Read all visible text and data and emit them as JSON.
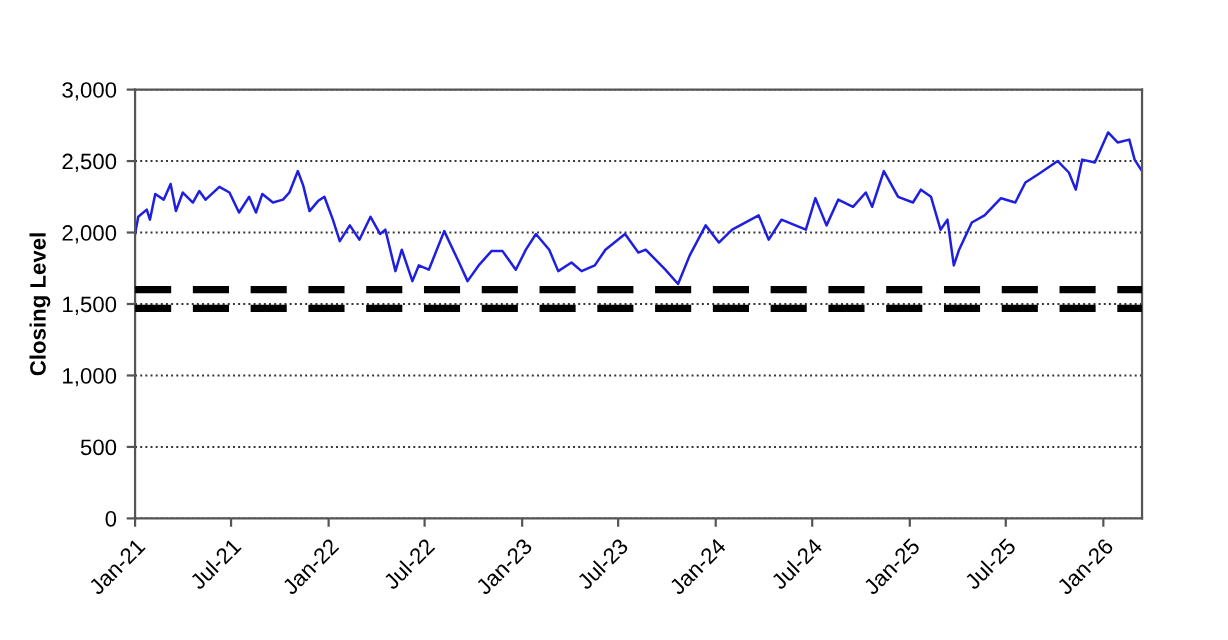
{
  "chart_data": {
    "type": "line",
    "ylabel": "Closing Level",
    "x": [
      "2021-01-01",
      "2021-01-07",
      "2021-01-23",
      "2021-01-29",
      "2021-02-08",
      "2021-02-24",
      "2021-03-09",
      "2021-03-19",
      "2021-04-01",
      "2021-04-20",
      "2021-05-02",
      "2021-05-14",
      "2021-06-09",
      "2021-06-28",
      "2021-07-16",
      "2021-08-04",
      "2021-08-17",
      "2021-08-29",
      "2021-09-18",
      "2021-10-07",
      "2021-10-19",
      "2021-11-04",
      "2021-11-14",
      "2021-11-26",
      "2021-12-12",
      "2021-12-24",
      "2022-01-09",
      "2022-01-22",
      "2022-02-10",
      "2022-02-28",
      "2022-03-21",
      "2022-04-08",
      "2022-04-18",
      "2022-05-07",
      "2022-05-19",
      "2022-06-08",
      "2022-06-20",
      "2022-07-09",
      "2022-08-07",
      "2022-09-04",
      "2022-09-20",
      "2022-10-11",
      "2022-11-04",
      "2022-11-25",
      "2022-12-20",
      "2023-01-08",
      "2023-01-27",
      "2023-02-21",
      "2023-03-10",
      "2023-04-04",
      "2023-04-23",
      "2023-05-18",
      "2023-06-07",
      "2023-07-14",
      "2023-08-08",
      "2023-08-22",
      "2023-09-28",
      "2023-10-22",
      "2023-11-13",
      "2023-12-13",
      "2024-01-07",
      "2024-02-01",
      "2024-03-22",
      "2024-04-10",
      "2024-05-04",
      "2024-06-19",
      "2024-07-07",
      "2024-07-28",
      "2024-08-19",
      "2024-09-16",
      "2024-10-10",
      "2024-10-22",
      "2024-11-13",
      "2024-12-10",
      "2025-01-07",
      "2025-01-22",
      "2025-02-10",
      "2025-02-28",
      "2025-03-13",
      "2025-03-25",
      "2025-04-04",
      "2025-04-28",
      "2025-05-22",
      "2025-06-22",
      "2025-07-19",
      "2025-08-07",
      "2025-09-01",
      "2025-10-07",
      "2025-10-28",
      "2025-11-10",
      "2025-11-22",
      "2025-12-16",
      "2026-01-10",
      "2026-01-28",
      "2026-02-19",
      "2026-03-01",
      "2026-03-13"
    ],
    "series": [
      {
        "color": "#1f1fe0",
        "values": [
          1990,
          2110,
          2160,
          2090,
          2270,
          2230,
          2340,
          2150,
          2280,
          2210,
          2290,
          2230,
          2320,
          2280,
          2140,
          2250,
          2140,
          2270,
          2210,
          2230,
          2280,
          2430,
          2330,
          2150,
          2220,
          2250,
          2090,
          1940,
          2050,
          1950,
          2110,
          1990,
          2020,
          1730,
          1880,
          1660,
          1770,
          1740,
          2010,
          1790,
          1660,
          1770,
          1870,
          1870,
          1740,
          1880,
          1990,
          1880,
          1730,
          1790,
          1730,
          1770,
          1880,
          1990,
          1860,
          1880,
          1740,
          1640,
          1840,
          2050,
          1930,
          2020,
          2120,
          1950,
          2090,
          2020,
          2240,
          2050,
          2230,
          2180,
          2280,
          2180,
          2430,
          2250,
          2210,
          2300,
          2250,
          2020,
          2090,
          1770,
          1880,
          2070,
          2120,
          2240,
          2210,
          2350,
          2410,
          2500,
          2420,
          2300,
          2510,
          2490,
          2700,
          2630,
          2650,
          2510,
          2440
        ]
      }
    ],
    "xlim": [
      "2021-01-01",
      "2026-03-15"
    ],
    "xticks": [
      {
        "value": "2021-01",
        "label": "Jan-21"
      },
      {
        "value": "2021-07",
        "label": "Jul-21"
      },
      {
        "value": "2022-01",
        "label": "Jan-22"
      },
      {
        "value": "2022-07",
        "label": "Jul-22"
      },
      {
        "value": "2023-01",
        "label": "Jan-23"
      },
      {
        "value": "2023-07",
        "label": "Jul-23"
      },
      {
        "value": "2024-01",
        "label": "Jan-24"
      },
      {
        "value": "2024-07",
        "label": "Jul-24"
      },
      {
        "value": "2025-01",
        "label": "Jan-25"
      },
      {
        "value": "2025-07",
        "label": "Jul-25"
      },
      {
        "value": "2026-01",
        "label": "Jan-26"
      }
    ],
    "ylim": [
      0,
      3000
    ],
    "yticks": [
      {
        "value": 0,
        "label": "0"
      },
      {
        "value": 500,
        "label": "500"
      },
      {
        "value": 1000,
        "label": "1,000"
      },
      {
        "value": 1500,
        "label": "1,500"
      },
      {
        "value": 2000,
        "label": "2,000"
      },
      {
        "value": 2500,
        "label": "2,500"
      },
      {
        "value": 3000,
        "label": "3,000"
      }
    ],
    "grid": "y",
    "marker": "none",
    "line_style": "solid",
    "ref_lines": [
      {
        "axis": "y",
        "value": 1600,
        "label": null,
        "color": "#000000",
        "line_style": "dashed"
      },
      {
        "axis": "y",
        "value": 1470,
        "label": null,
        "color": "#000000",
        "line_style": "dashed"
      }
    ]
  }
}
